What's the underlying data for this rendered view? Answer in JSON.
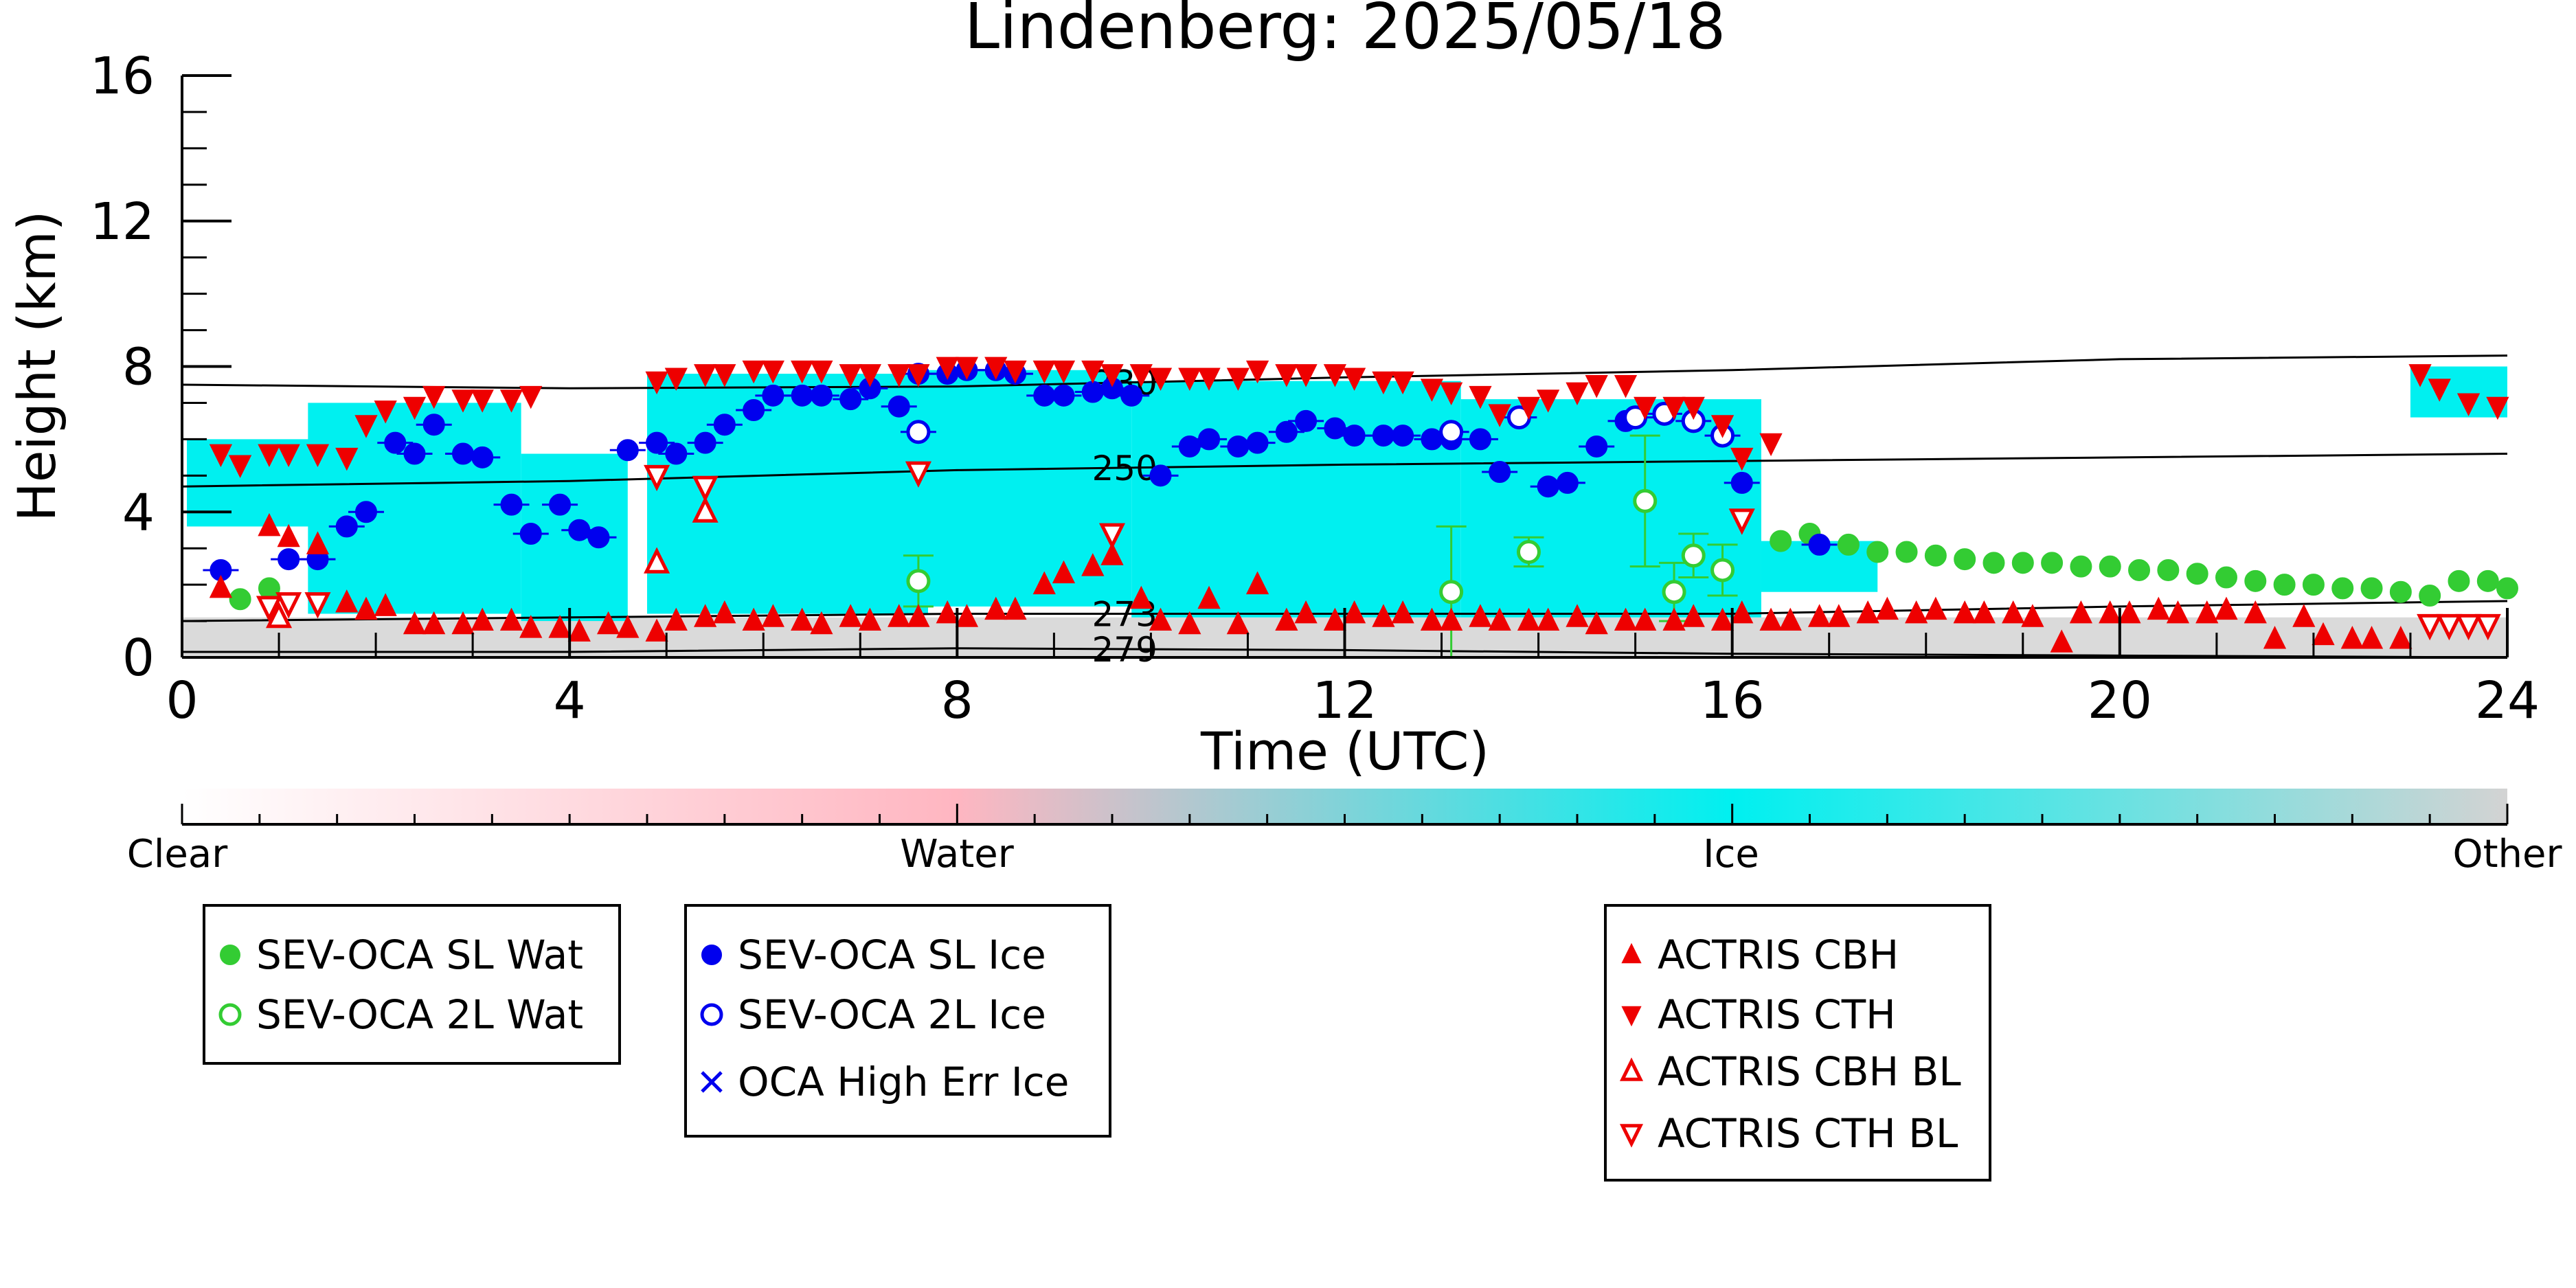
{
  "chart_data": {
    "type": "scatter",
    "title": "Lindenberg: 2025/05/18",
    "xlabel": "Time (UTC)",
    "ylabel": "Height (km)",
    "xlim": [
      0,
      24
    ],
    "ylim": [
      0,
      16
    ],
    "xticks": [
      0,
      4,
      8,
      12,
      16,
      20,
      24
    ],
    "yticks": [
      0,
      4,
      8,
      12,
      16
    ],
    "grid": false,
    "background_classification": {
      "type": "heatmap",
      "colorbar_labels": [
        "Clear",
        "Water",
        "Ice",
        "Other"
      ],
      "colors": {
        "Clear": "#ffffff",
        "Water": "#ffb6c1",
        "Ice": "#00f0f0",
        "Other": "#d3d3d3"
      },
      "ice_layers": [
        {
          "t0": 0.05,
          "t1": 1.8,
          "base": 3.6,
          "top": 6.0
        },
        {
          "t0": 1.3,
          "t1": 3.5,
          "base": 1.2,
          "top": 7.0
        },
        {
          "t0": 3.5,
          "t1": 4.6,
          "base": 1.0,
          "top": 5.6
        },
        {
          "t0": 4.8,
          "t1": 7.7,
          "base": 1.2,
          "top": 7.8
        },
        {
          "t0": 7.5,
          "t1": 9.8,
          "base": 1.4,
          "top": 7.9
        },
        {
          "t0": 9.8,
          "t1": 13.2,
          "base": 1.1,
          "top": 7.6
        },
        {
          "t0": 13.2,
          "t1": 16.3,
          "base": 1.1,
          "top": 7.1
        },
        {
          "t0": 16.3,
          "t1": 17.5,
          "base": 1.8,
          "top": 3.2
        },
        {
          "t0": 23.0,
          "t1": 24.0,
          "base": 6.6,
          "top": 8.0
        }
      ]
    },
    "temperature_contours": [
      {
        "label": "230",
        "t": [
          0,
          4,
          8,
          12,
          16,
          20,
          24
        ],
        "y": [
          7.5,
          7.4,
          7.45,
          7.7,
          7.9,
          8.2,
          8.3
        ]
      },
      {
        "label": "250",
        "t": [
          0,
          4,
          8,
          12,
          16,
          20,
          24
        ],
        "y": [
          4.7,
          4.85,
          5.15,
          5.3,
          5.4,
          5.5,
          5.6
        ]
      },
      {
        "label": "273",
        "t": [
          0,
          4,
          8,
          12,
          16,
          20,
          24
        ],
        "y": [
          1.0,
          1.1,
          1.2,
          1.2,
          1.2,
          1.4,
          1.55
        ]
      },
      {
        "label": "279",
        "t": [
          0,
          4,
          8,
          12,
          16,
          20,
          24
        ],
        "y": [
          0.15,
          0.15,
          0.25,
          0.2,
          0.1,
          0.05,
          0.0
        ]
      }
    ],
    "series": [
      {
        "name": "SEV-OCA SL Wat",
        "color": "#33cc33",
        "marker": "filled-circle",
        "x": [
          0.6,
          0.9,
          16.5,
          16.8,
          17.2,
          17.5,
          17.8,
          18.1,
          18.4,
          18.7,
          19.0,
          19.3,
          19.6,
          19.9,
          20.2,
          20.5,
          20.8,
          21.1,
          21.4,
          21.7,
          22.0,
          22.3,
          22.6,
          22.9,
          23.2,
          23.5,
          23.8,
          24.0
        ],
        "y": [
          1.6,
          1.9,
          3.2,
          3.4,
          3.1,
          2.9,
          2.9,
          2.8,
          2.7,
          2.6,
          2.6,
          2.6,
          2.5,
          2.5,
          2.4,
          2.4,
          2.3,
          2.2,
          2.1,
          2.0,
          2.0,
          1.9,
          1.9,
          1.8,
          1.7,
          2.1,
          2.1,
          1.9
        ]
      },
      {
        "name": "SEV-OCA 2L Wat",
        "color": "#33cc33",
        "marker": "open-circle",
        "x": [
          7.6,
          13.1,
          13.9,
          15.1,
          15.4,
          15.6,
          15.9
        ],
        "y": [
          2.1,
          1.8,
          2.9,
          4.3,
          1.8,
          2.8,
          2.4
        ],
        "err": [
          0.7,
          1.8,
          0.4,
          1.8,
          0.8,
          0.6,
          0.7
        ]
      },
      {
        "name": "SEV-OCA SL Ice",
        "color": "#0000ee",
        "marker": "filled-circle",
        "x": [
          0.4,
          1.1,
          1.4,
          1.7,
          1.9,
          2.2,
          2.4,
          2.6,
          2.9,
          3.1,
          3.4,
          3.6,
          3.9,
          4.1,
          4.3,
          4.6,
          4.9,
          5.1,
          5.4,
          5.6,
          5.9,
          6.1,
          6.4,
          6.6,
          6.9,
          7.1,
          7.4,
          7.6,
          7.9,
          8.1,
          8.4,
          8.6,
          8.9,
          9.1,
          9.4,
          9.6,
          9.8,
          10.1,
          10.4,
          10.6,
          10.9,
          11.1,
          11.4,
          11.6,
          11.9,
          12.1,
          12.4,
          12.6,
          12.9,
          13.1,
          13.4,
          13.6,
          14.1,
          14.3,
          14.6,
          14.9,
          16.1,
          16.9
        ],
        "y": [
          2.4,
          2.7,
          2.7,
          3.6,
          4.0,
          5.9,
          5.6,
          6.4,
          5.6,
          5.5,
          4.2,
          3.4,
          4.2,
          3.5,
          3.3,
          5.7,
          5.9,
          5.6,
          5.9,
          6.4,
          6.8,
          7.2,
          7.2,
          7.2,
          7.1,
          7.4,
          6.9,
          7.8,
          7.8,
          7.9,
          7.9,
          7.8,
          7.2,
          7.2,
          7.3,
          7.4,
          7.2,
          5.0,
          5.8,
          6.0,
          5.8,
          5.9,
          6.2,
          6.5,
          6.3,
          6.1,
          6.1,
          6.1,
          6.0,
          6.0,
          6.0,
          5.1,
          4.7,
          4.8,
          5.8,
          6.5,
          4.8,
          3.1
        ]
      },
      {
        "name": "SEV-OCA 2L Ice",
        "color": "#0000ee",
        "marker": "open-circle",
        "x": [
          7.6,
          13.1,
          13.8,
          15.0,
          15.3,
          15.6,
          15.9
        ],
        "y": [
          6.2,
          6.2,
          6.6,
          6.6,
          6.7,
          6.5,
          6.1
        ]
      },
      {
        "name": "OCA High Err Ice",
        "color": "#0000ee",
        "marker": "x",
        "x": [],
        "y": []
      },
      {
        "name": "ACTRIS CBH",
        "color": "#ee0000",
        "marker": "filled-triangle-up",
        "x": [
          0.4,
          0.9,
          1.1,
          1.4,
          1.7,
          1.9,
          2.1,
          2.4,
          2.6,
          2.9,
          3.1,
          3.4,
          3.6,
          3.9,
          4.1,
          4.4,
          4.6,
          4.9,
          5.1,
          5.4,
          5.6,
          5.9,
          6.1,
          6.4,
          6.6,
          6.9,
          7.1,
          7.4,
          7.6,
          7.9,
          8.1,
          8.4,
          8.6,
          8.9,
          9.1,
          9.4,
          9.6,
          9.9,
          10.1,
          10.4,
          10.6,
          10.9,
          11.1,
          11.4,
          11.6,
          11.9,
          12.1,
          12.4,
          12.6,
          12.9,
          13.1,
          13.4,
          13.6,
          13.9,
          14.1,
          14.4,
          14.6,
          14.9,
          15.1,
          15.4,
          15.6,
          15.9,
          16.1,
          16.4,
          16.6,
          16.9,
          17.1,
          17.4,
          17.6,
          17.9,
          18.1,
          18.4,
          18.6,
          18.9,
          19.1,
          19.4,
          19.6,
          19.9,
          20.1,
          20.4,
          20.6,
          20.9,
          21.1,
          21.4,
          21.6,
          21.9,
          22.1,
          22.4,
          22.6,
          22.9
        ],
        "y": [
          1.9,
          3.6,
          3.3,
          3.1,
          1.5,
          1.3,
          1.4,
          0.9,
          0.9,
          0.9,
          1.0,
          1.0,
          0.8,
          0.8,
          0.7,
          0.9,
          0.8,
          0.7,
          1.0,
          1.1,
          1.2,
          1.0,
          1.1,
          1.0,
          0.9,
          1.1,
          1.0,
          1.1,
          1.1,
          1.2,
          1.1,
          1.3,
          1.3,
          2.0,
          2.3,
          2.5,
          2.8,
          1.6,
          1.0,
          0.9,
          1.6,
          0.9,
          2.0,
          1.0,
          1.2,
          1.0,
          1.2,
          1.1,
          1.2,
          1.0,
          1.0,
          1.1,
          1.0,
          1.0,
          1.0,
          1.1,
          0.9,
          1.0,
          1.0,
          1.0,
          1.1,
          1.0,
          1.2,
          1.0,
          1.0,
          1.1,
          1.1,
          1.2,
          1.3,
          1.2,
          1.3,
          1.2,
          1.2,
          1.2,
          1.1,
          0.4,
          1.2,
          1.2,
          1.2,
          1.3,
          1.2,
          1.2,
          1.3,
          1.2,
          0.5,
          1.1,
          0.6,
          0.5,
          0.5,
          0.5
        ]
      },
      {
        "name": "ACTRIS CTH",
        "color": "#ee0000",
        "marker": "filled-triangle-down",
        "x": [
          0.4,
          0.6,
          0.9,
          1.1,
          1.4,
          1.7,
          1.9,
          2.1,
          2.4,
          2.6,
          2.9,
          3.1,
          3.4,
          3.6,
          4.9,
          5.1,
          5.4,
          5.6,
          5.9,
          6.1,
          6.4,
          6.6,
          6.9,
          7.1,
          7.4,
          7.6,
          7.9,
          8.1,
          8.4,
          8.6,
          8.9,
          9.1,
          9.4,
          9.6,
          9.9,
          10.1,
          10.4,
          10.6,
          10.9,
          11.1,
          11.4,
          11.6,
          11.9,
          12.1,
          12.4,
          12.6,
          12.9,
          13.1,
          13.4,
          13.6,
          13.9,
          14.1,
          14.4,
          14.6,
          14.9,
          15.1,
          15.4,
          15.6,
          15.9,
          16.1,
          16.4,
          23.1,
          23.3,
          23.6,
          23.9
        ],
        "y": [
          5.6,
          5.3,
          5.6,
          5.6,
          5.6,
          5.5,
          6.4,
          6.8,
          6.9,
          7.2,
          7.1,
          7.1,
          7.1,
          7.2,
          7.6,
          7.7,
          7.8,
          7.8,
          7.9,
          7.9,
          7.9,
          7.9,
          7.8,
          7.8,
          7.8,
          7.8,
          8.0,
          8.0,
          8.0,
          7.9,
          7.9,
          7.9,
          7.9,
          7.8,
          7.8,
          7.7,
          7.7,
          7.7,
          7.7,
          7.9,
          7.8,
          7.8,
          7.8,
          7.7,
          7.6,
          7.6,
          7.4,
          7.3,
          7.2,
          6.7,
          6.9,
          7.1,
          7.3,
          7.5,
          7.5,
          6.9,
          6.9,
          6.9,
          6.4,
          5.5,
          5.9,
          7.8,
          7.4,
          7.0,
          6.9
        ]
      },
      {
        "name": "ACTRIS CBH BL",
        "color": "#ee0000",
        "marker": "open-triangle-up",
        "x": [
          1.0,
          4.9,
          5.4
        ],
        "y": [
          1.1,
          2.6,
          4.0
        ]
      },
      {
        "name": "ACTRIS CTH BL",
        "color": "#ee0000",
        "marker": "open-triangle-down",
        "x": [
          0.9,
          1.1,
          1.4,
          4.9,
          5.4,
          7.6,
          9.6,
          16.1,
          23.2,
          23.4,
          23.6,
          23.8
        ],
        "y": [
          1.4,
          1.5,
          1.5,
          5.0,
          4.7,
          5.1,
          3.4,
          3.8,
          0.9,
          0.9,
          0.9,
          0.9
        ]
      }
    ]
  }
}
